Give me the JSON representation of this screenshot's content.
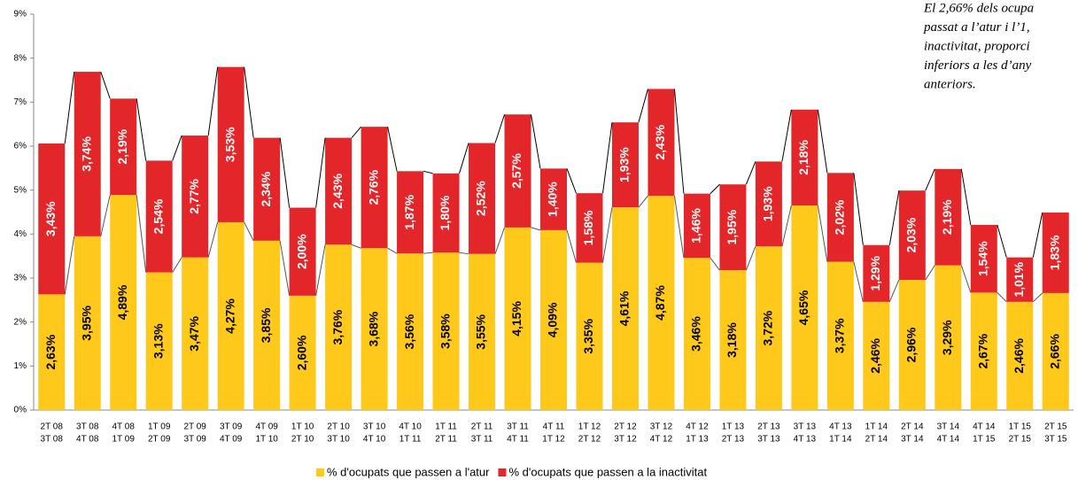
{
  "chart_data": {
    "type": "stacked-bar",
    "categories": [
      [
        "2T 08",
        "3T 08"
      ],
      [
        "3T 08",
        "4T 08"
      ],
      [
        "4T 08",
        "1T 09"
      ],
      [
        "1T 09",
        "2T 09"
      ],
      [
        "2T 09",
        "3T 09"
      ],
      [
        "3T 09",
        "4T 09"
      ],
      [
        "4T 09",
        "1T 10"
      ],
      [
        "1T 10",
        "2T 10"
      ],
      [
        "2T 10",
        "3T 10"
      ],
      [
        "3T 10",
        "4T 10"
      ],
      [
        "4T 10",
        "1T 11"
      ],
      [
        "1T 11",
        "2T 11"
      ],
      [
        "2T 11",
        "3T 11"
      ],
      [
        "3T 11",
        "4T 11"
      ],
      [
        "4T 11",
        "1T 12"
      ],
      [
        "1T 12",
        "2T 12"
      ],
      [
        "2T 12",
        "3T 12"
      ],
      [
        "3T 12",
        "4T 12"
      ],
      [
        "4T 12",
        "1T 13"
      ],
      [
        "1T 13",
        "2T 13"
      ],
      [
        "2T 13",
        "3T 13"
      ],
      [
        "3T 13",
        "4T 13"
      ],
      [
        "4T 13",
        "1T 14"
      ],
      [
        "1T 14",
        "2T 14"
      ],
      [
        "2T 14",
        "3T 14"
      ],
      [
        "3T 14",
        "4T 14"
      ],
      [
        "4T 14",
        "1T 15"
      ],
      [
        "1T 15",
        "2T 15"
      ],
      [
        "2T 15",
        "3T 15"
      ]
    ],
    "series": [
      {
        "name": "% d'ocupats que passen a l'atur",
        "color": "#ffc91b",
        "label_color": "#000000",
        "values": [
          2.63,
          3.95,
          4.89,
          3.13,
          3.47,
          4.27,
          3.85,
          2.6,
          3.76,
          3.68,
          3.56,
          3.58,
          3.55,
          4.15,
          4.09,
          3.35,
          4.61,
          4.87,
          3.46,
          3.18,
          3.72,
          4.65,
          3.37,
          2.46,
          2.96,
          3.29,
          2.67,
          2.46,
          2.66
        ],
        "value_labels": [
          "2,63%",
          "3,95%",
          "4,89%",
          "3,13%",
          "3,47%",
          "4,27%",
          "3,85%",
          "2,60%",
          "3,76%",
          "3,68%",
          "3,56%",
          "3,58%",
          "3,55%",
          "4,15%",
          "4,09%",
          "3,35%",
          "4,61%",
          "4,87%",
          "3,46%",
          "3,18%",
          "3,72%",
          "4,65%",
          "3,37%",
          "2,46%",
          "2,96%",
          "3,29%",
          "2,67%",
          "2,46%",
          "2,66%"
        ]
      },
      {
        "name": "% d'ocupats que passen a la inactivitat",
        "color": "#e3262a",
        "label_color": "#ffffff",
        "values": [
          3.43,
          3.74,
          2.19,
          2.54,
          2.77,
          3.53,
          2.34,
          2.0,
          2.43,
          2.76,
          1.87,
          1.8,
          2.52,
          2.57,
          1.4,
          1.58,
          1.93,
          2.43,
          1.46,
          1.95,
          1.93,
          2.18,
          2.02,
          1.29,
          2.03,
          2.19,
          1.54,
          1.01,
          1.83
        ],
        "value_labels": [
          "3,43%",
          "3,74%",
          "2,19%",
          "2,54%",
          "2,77%",
          "3,53%",
          "2,34%",
          "2,00%",
          "2,43%",
          "2,76%",
          "1,87%",
          "1,80%",
          "2,52%",
          "2,57%",
          "1,40%",
          "1,58%",
          "1,93%",
          "2,43%",
          "1,46%",
          "1,95%",
          "1,93%",
          "2,18%",
          "2,02%",
          "1,29%",
          "2,03%",
          "2,19%",
          "1,54%",
          "1,01%",
          "1,83%"
        ]
      }
    ],
    "ylim": [
      0,
      9
    ],
    "yticks": [
      {
        "value": 0,
        "label": "0%"
      },
      {
        "value": 1,
        "label": "1%"
      },
      {
        "value": 2,
        "label": "2%"
      },
      {
        "value": 3,
        "label": "3%"
      },
      {
        "value": 4,
        "label": "4%"
      },
      {
        "value": 5,
        "label": "5%"
      },
      {
        "value": 6,
        "label": "6%"
      },
      {
        "value": 7,
        "label": "7%"
      },
      {
        "value": 8,
        "label": "8%"
      },
      {
        "value": 9,
        "label": "9%"
      }
    ],
    "annotation": [
      "El 2,66% dels ocupa",
      "passat a l’atur i l’1,",
      "inactivitat, proporci",
      "inferiors a les d’any",
      "anteriors."
    ],
    "legend": "bottom"
  }
}
